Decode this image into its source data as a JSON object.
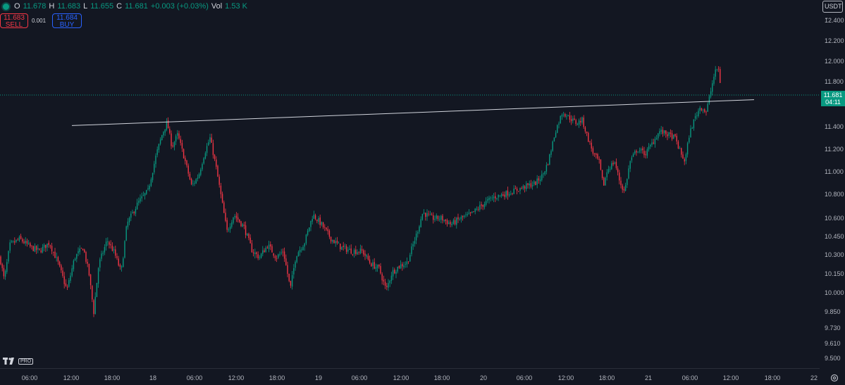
{
  "legend": {
    "open_label": "O",
    "open": "11.678",
    "high_label": "H",
    "high": "11.683",
    "low_label": "L",
    "low": "11.655",
    "close_label": "C",
    "close": "11.681",
    "change": "+0.003 (+0.03%)",
    "vol_label": "Vol",
    "vol": "1.53 K"
  },
  "trade": {
    "sell_price": "11.683",
    "sell_label": "SELL",
    "spread": "0.001",
    "buy_price": "11.684",
    "buy_label": "BUY"
  },
  "currency": "USDT",
  "last_price": {
    "price": "11.681",
    "countdown": "04:11"
  },
  "colors": {
    "up": "#089981",
    "down": "#f23645",
    "background": "#131722",
    "trendline": "#d1d4dc"
  },
  "chart_data": {
    "type": "candlestick",
    "price_ticks": [
      "12.400",
      "12.200",
      "12.000",
      "11.800",
      "11.681",
      "11.400",
      "11.200",
      "11.000",
      "10.800",
      "10.600",
      "10.450",
      "10.300",
      "10.150",
      "10.000",
      "9.850",
      "9.730",
      "9.610",
      "9.500"
    ],
    "time_ticks": [
      "06:00",
      "12:00",
      "18:00",
      "18",
      "06:00",
      "12:00",
      "18:00",
      "19",
      "06:00",
      "12:00",
      "18:00",
      "20",
      "06:00",
      "12:00",
      "18:00",
      "21",
      "06:00",
      "12:00",
      "18:00",
      "22"
    ],
    "path": [
      [
        0,
        10.28
      ],
      [
        6,
        10.1
      ],
      [
        14,
        10.38
      ],
      [
        28,
        10.43
      ],
      [
        44,
        10.36
      ],
      [
        56,
        10.33
      ],
      [
        70,
        10.4
      ],
      [
        82,
        10.24
      ],
      [
        95,
        10.02
      ],
      [
        106,
        10.28
      ],
      [
        118,
        10.36
      ],
      [
        126,
        10.16
      ],
      [
        133,
        9.85
      ],
      [
        140,
        10.22
      ],
      [
        152,
        10.42
      ],
      [
        162,
        10.32
      ],
      [
        172,
        10.16
      ],
      [
        180,
        10.55
      ],
      [
        196,
        10.73
      ],
      [
        210,
        10.83
      ],
      [
        222,
        11.16
      ],
      [
        230,
        11.33
      ],
      [
        237,
        11.44
      ],
      [
        244,
        11.22
      ],
      [
        252,
        11.33
      ],
      [
        262,
        11.11
      ],
      [
        272,
        10.87
      ],
      [
        282,
        10.97
      ],
      [
        290,
        11.16
      ],
      [
        298,
        11.3
      ],
      [
        306,
        11.06
      ],
      [
        314,
        10.77
      ],
      [
        322,
        10.49
      ],
      [
        332,
        10.63
      ],
      [
        346,
        10.53
      ],
      [
        358,
        10.33
      ],
      [
        368,
        10.28
      ],
      [
        380,
        10.38
      ],
      [
        392,
        10.28
      ],
      [
        402,
        10.33
      ],
      [
        412,
        10.03
      ],
      [
        420,
        10.3
      ],
      [
        432,
        10.4
      ],
      [
        444,
        10.63
      ],
      [
        456,
        10.55
      ],
      [
        470,
        10.43
      ],
      [
        484,
        10.36
      ],
      [
        500,
        10.33
      ],
      [
        514,
        10.33
      ],
      [
        526,
        10.23
      ],
      [
        538,
        10.19
      ],
      [
        548,
        10.02
      ],
      [
        556,
        10.16
      ],
      [
        566,
        10.21
      ],
      [
        578,
        10.24
      ],
      [
        590,
        10.45
      ],
      [
        600,
        10.65
      ],
      [
        612,
        10.6
      ],
      [
        626,
        10.6
      ],
      [
        640,
        10.55
      ],
      [
        654,
        10.6
      ],
      [
        668,
        10.63
      ],
      [
        682,
        10.7
      ],
      [
        698,
        10.77
      ],
      [
        714,
        10.8
      ],
      [
        730,
        10.83
      ],
      [
        746,
        10.87
      ],
      [
        760,
        10.9
      ],
      [
        770,
        10.97
      ],
      [
        778,
        11.09
      ],
      [
        788,
        11.36
      ],
      [
        798,
        11.53
      ],
      [
        808,
        11.48
      ],
      [
        818,
        11.43
      ],
      [
        826,
        11.46
      ],
      [
        834,
        11.3
      ],
      [
        842,
        11.16
      ],
      [
        850,
        11.09
      ],
      [
        856,
        10.87
      ],
      [
        862,
        11.02
      ],
      [
        872,
        11.09
      ],
      [
        880,
        10.9
      ],
      [
        886,
        10.82
      ],
      [
        894,
        11.09
      ],
      [
        904,
        11.2
      ],
      [
        916,
        11.16
      ],
      [
        926,
        11.26
      ],
      [
        936,
        11.36
      ],
      [
        948,
        11.33
      ],
      [
        958,
        11.3
      ],
      [
        966,
        11.16
      ],
      [
        972,
        11.09
      ],
      [
        978,
        11.33
      ],
      [
        986,
        11.48
      ],
      [
        994,
        11.58
      ],
      [
        1002,
        11.53
      ],
      [
        1008,
        11.7
      ],
      [
        1014,
        11.88
      ],
      [
        1019,
        11.95
      ],
      [
        1024,
        11.68
      ]
    ],
    "trendline": {
      "from": [
        102,
        11.41
      ],
      "to": [
        1070,
        11.64
      ]
    },
    "last_price": 11.681
  }
}
